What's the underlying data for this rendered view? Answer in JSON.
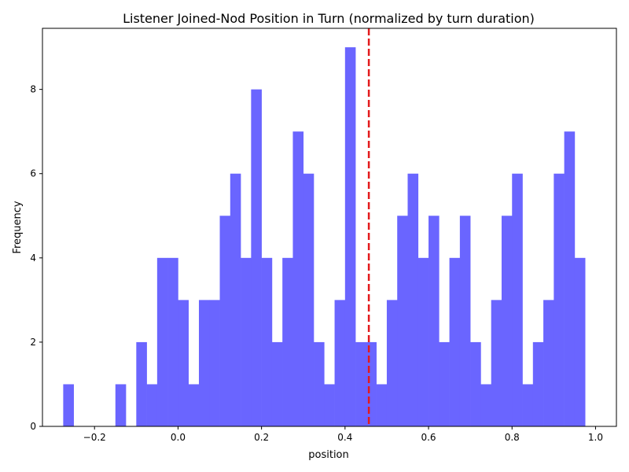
{
  "chart_data": {
    "type": "bar",
    "title": "Listener Joined-Nod Position in Turn (normalized by turn duration)",
    "xlabel": "position",
    "ylabel": "Frequency",
    "xlim": [
      -0.3247,
      1.05
    ],
    "ylim": [
      0,
      9.45
    ],
    "bin_start": -0.275,
    "bin_width": 0.025,
    "values": [
      1,
      0,
      0,
      0,
      0,
      1,
      0,
      2,
      1,
      4,
      4,
      3,
      1,
      3,
      3,
      5,
      6,
      4,
      8,
      4,
      2,
      4,
      7,
      6,
      2,
      1,
      3,
      9,
      2,
      2,
      1,
      3,
      5,
      6,
      4,
      5,
      2,
      4,
      5,
      2,
      1,
      3,
      5,
      6,
      1,
      2,
      3,
      6,
      7,
      4
    ],
    "bar_color": "#6a65ff",
    "mean_line": {
      "x": 0.457,
      "color": "#e31a1c",
      "style": "dashed"
    },
    "x_ticks": [
      {
        "value": -0.2,
        "label": "−0.2"
      },
      {
        "value": 0.0,
        "label": "0.0"
      },
      {
        "value": 0.2,
        "label": "0.2"
      },
      {
        "value": 0.4,
        "label": "0.4"
      },
      {
        "value": 0.6,
        "label": "0.6"
      },
      {
        "value": 0.8,
        "label": "0.8"
      },
      {
        "value": 1.0,
        "label": "1.0"
      }
    ],
    "y_ticks": [
      {
        "value": 0,
        "label": "0"
      },
      {
        "value": 2,
        "label": "2"
      },
      {
        "value": 4,
        "label": "4"
      },
      {
        "value": 6,
        "label": "6"
      },
      {
        "value": 8,
        "label": "8"
      }
    ],
    "grid": false,
    "legend": "none"
  }
}
